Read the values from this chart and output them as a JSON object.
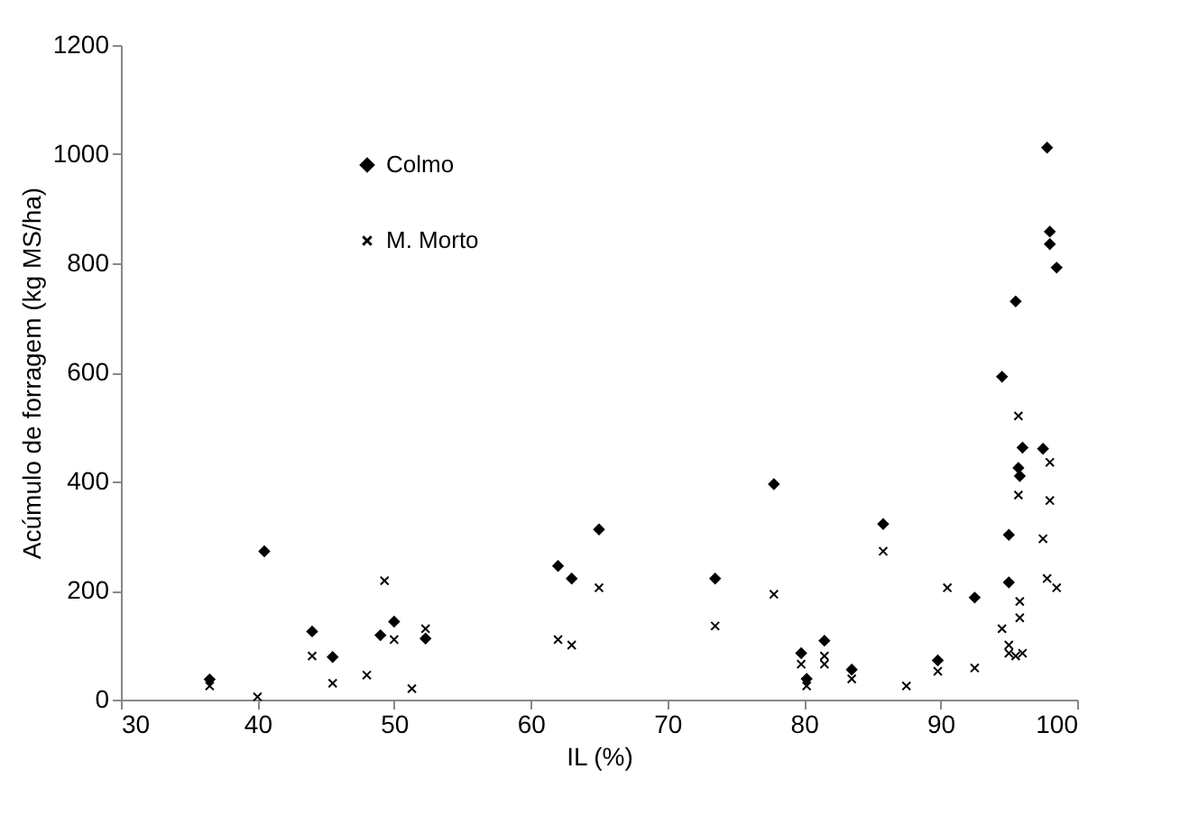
{
  "chart_data": {
    "type": "scatter",
    "xlabel": "IL (%)",
    "ylabel": "Acúmulo de forragem (kg MS/ha)",
    "xlim": [
      30,
      100
    ],
    "xticks": [
      30,
      40,
      50,
      60,
      70,
      80,
      90,
      100
    ],
    "ylim": [
      0,
      1200
    ],
    "yticks": [
      0,
      200,
      400,
      600,
      800,
      1000,
      1200
    ],
    "grid": false,
    "legend": "top left",
    "series": [
      {
        "name": "Colmo",
        "color": "#000000",
        "marker": "diamond",
        "x": [
          36.5,
          40.5,
          44,
          45.5,
          49,
          50,
          52.3,
          62,
          63,
          65,
          73.5,
          77.8,
          79.8,
          80.2,
          81.5,
          83.5,
          85.8,
          89.8,
          92.5,
          94.5,
          95,
          95,
          95.5,
          95.7,
          95.8,
          96,
          97.5,
          97.8,
          98,
          98,
          98.5
        ],
        "values": [
          37,
          272,
          125,
          78,
          118,
          143,
          112,
          245,
          222,
          312,
          222,
          395,
          85,
          38,
          108,
          55,
          322,
          72,
          187,
          592,
          302,
          215,
          730,
          425,
          410,
          462,
          460,
          1012,
          858,
          835,
          792
        ]
      },
      {
        "name": "M. Morto",
        "color": "#000000",
        "marker": "cross",
        "x": [
          36.5,
          40,
          44,
          45.5,
          48,
          49.3,
          50,
          51.3,
          52.3,
          62,
          63,
          65,
          73.5,
          77.8,
          79.8,
          80.2,
          81.5,
          81.5,
          83.5,
          85.8,
          87.5,
          89.8,
          90.5,
          92.5,
          94.5,
          95,
          95,
          95.5,
          95.7,
          95.7,
          95.8,
          95.8,
          96,
          97.5,
          97.8,
          98,
          98,
          98.5
        ],
        "values": [
          25,
          5,
          80,
          30,
          45,
          218,
          110,
          20,
          130,
          110,
          100,
          205,
          135,
          193,
          65,
          25,
          80,
          65,
          38,
          272,
          25,
          52,
          205,
          58,
          130,
          100,
          85,
          80,
          520,
          375,
          180,
          150,
          85,
          295,
          222,
          435,
          365,
          205
        ]
      }
    ]
  }
}
